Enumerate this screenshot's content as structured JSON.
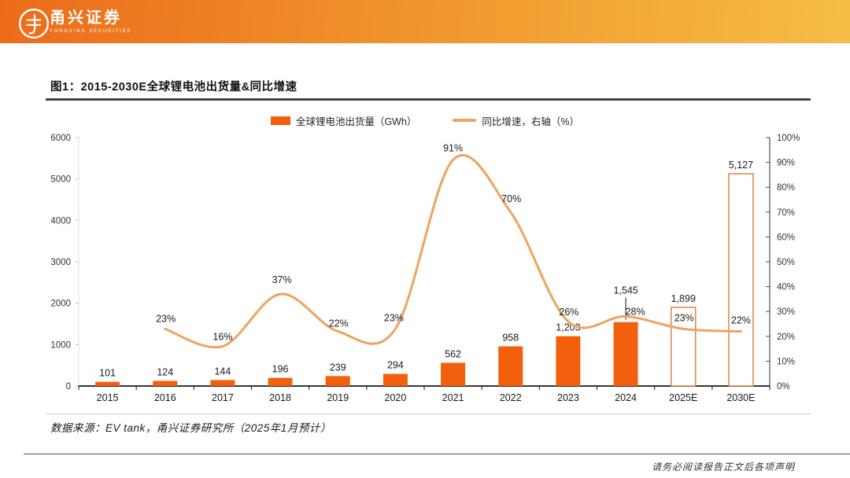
{
  "header": {
    "brand_cn": "甬兴证券",
    "brand_en": "YONGXING SECURITIES"
  },
  "figure": {
    "title": "图1：2015-2030E全球锂电池出货量&同比增速",
    "source": "数据来源：EV tank，甬兴证券研究所（2025年1月预计）",
    "footer_note": "请务必阅读报告正文后各项声明"
  },
  "chart_data": {
    "type": "bar",
    "combo": "bar+line",
    "title": "2015-2030E全球锂电池出货量&同比增速",
    "categories": [
      "2015",
      "2016",
      "2017",
      "2018",
      "2019",
      "2020",
      "2021",
      "2022",
      "2023",
      "2024",
      "2025E",
      "2030E"
    ],
    "series": [
      {
        "name": "全球锂电池出货量（GWh）",
        "type": "bar",
        "axis": "left",
        "values": [
          101,
          124,
          144,
          196,
          239,
          294,
          562,
          958,
          1203,
          1545,
          1899,
          5127
        ],
        "value_labels": [
          "101",
          "124",
          "144",
          "196",
          "239",
          "294",
          "562",
          "958",
          "1,203",
          "1,545",
          "1,899",
          "5,127"
        ],
        "bar_style": [
          "solid",
          "solid",
          "solid",
          "solid",
          "solid",
          "solid",
          "solid",
          "solid",
          "solid",
          "solid",
          "outline",
          "outline"
        ]
      },
      {
        "name": "同比增速，右轴（%）",
        "type": "line",
        "axis": "right",
        "values": [
          null,
          23,
          16,
          37,
          22,
          23,
          91,
          70,
          26,
          28,
          23,
          22
        ],
        "value_labels": [
          null,
          "23%",
          "16%",
          "37%",
          "22%",
          "23%",
          "91%",
          "70%",
          "26%",
          "28%",
          "23%",
          "22%"
        ]
      }
    ],
    "left_axis": {
      "min": 0,
      "max": 6000,
      "step": 1000,
      "tick_labels": [
        "0",
        "1000",
        "2000",
        "3000",
        "4000",
        "5000",
        "6000"
      ]
    },
    "right_axis": {
      "min": 0,
      "max": 100,
      "step": 10,
      "tick_labels": [
        "0%",
        "10%",
        "20%",
        "30%",
        "40%",
        "50%",
        "60%",
        "70%",
        "80%",
        "90%",
        "100%"
      ]
    },
    "legend_position": "top",
    "grid": false,
    "colors": {
      "bar": "#f25f0d",
      "bar_outline": "#dd7b3c",
      "line": "#eea45f"
    }
  }
}
